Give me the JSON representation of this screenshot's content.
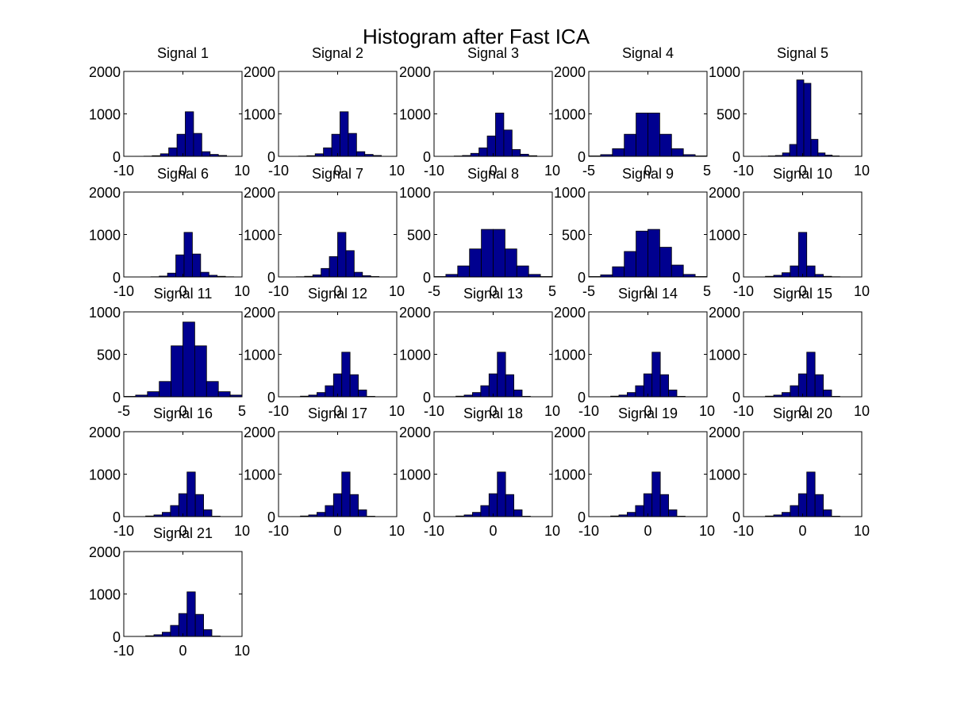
{
  "chart_data": {
    "type": "bar",
    "title": "Histogram after Fast ICA",
    "bar_color": "#00008F",
    "edge_color": "#000000",
    "grid": false,
    "panels": [
      {
        "title": "Signal 1",
        "xlim": [
          -10,
          10
        ],
        "ylim": [
          0,
          2000
        ],
        "xticks": [
          -10,
          0,
          10
        ],
        "yticks": [
          0,
          1000,
          2000
        ],
        "bin_centers": [
          -7.3,
          -5.9,
          -4.5,
          -3.1,
          -1.7,
          -0.3,
          1.1,
          2.5,
          3.9,
          5.3,
          6.7
        ],
        "counts": [
          2,
          5,
          15,
          60,
          200,
          520,
          1050,
          540,
          110,
          45,
          20
        ]
      },
      {
        "title": "Signal 2",
        "xlim": [
          -10,
          10
        ],
        "ylim": [
          0,
          2000
        ],
        "xticks": [
          -10,
          0,
          10
        ],
        "yticks": [
          0,
          1000,
          2000
        ],
        "bin_centers": [
          -7.3,
          -5.9,
          -4.5,
          -3.1,
          -1.7,
          -0.3,
          1.1,
          2.5,
          3.9,
          5.3,
          6.7
        ],
        "counts": [
          2,
          5,
          15,
          60,
          200,
          520,
          1050,
          540,
          110,
          45,
          20
        ]
      },
      {
        "title": "Signal 3",
        "xlim": [
          -10,
          10
        ],
        "ylim": [
          0,
          2000
        ],
        "xticks": [
          -10,
          0,
          10
        ],
        "yticks": [
          0,
          1000,
          2000
        ],
        "bin_centers": [
          -7.3,
          -5.9,
          -4.5,
          -3.1,
          -1.7,
          -0.3,
          1.1,
          2.5,
          3.9,
          5.3,
          6.7
        ],
        "counts": [
          2,
          8,
          20,
          70,
          200,
          480,
          1020,
          620,
          160,
          50,
          15
        ]
      },
      {
        "title": "Signal 4",
        "xlim": [
          -5,
          5
        ],
        "ylim": [
          0,
          2000
        ],
        "xticks": [
          -5,
          0,
          5
        ],
        "yticks": [
          0,
          1000,
          2000
        ],
        "bin_centers": [
          -4.5,
          -3.5,
          -2.5,
          -1.5,
          -0.5,
          0.5,
          1.5,
          2.5,
          3.5,
          4.5
        ],
        "counts": [
          10,
          40,
          180,
          520,
          1020,
          1020,
          520,
          180,
          40,
          10
        ]
      },
      {
        "title": "Signal 5",
        "xlim": [
          -10,
          10
        ],
        "ylim": [
          0,
          1000
        ],
        "xticks": [
          -10,
          0,
          10
        ],
        "yticks": [
          0,
          500,
          1000
        ],
        "bin_centers": [
          -6.4,
          -5.2,
          -4.0,
          -2.8,
          -1.6,
          -0.4,
          0.8,
          2.0,
          3.2,
          4.4,
          5.6
        ],
        "counts": [
          2,
          5,
          10,
          40,
          140,
          900,
          860,
          200,
          40,
          15,
          5
        ]
      },
      {
        "title": "Signal 6",
        "xlim": [
          -10,
          10
        ],
        "ylim": [
          0,
          2000
        ],
        "xticks": [
          -10,
          0,
          10
        ],
        "yticks": [
          0,
          1000,
          2000
        ],
        "bin_centers": [
          -4.7,
          -3.3,
          -1.9,
          -0.5,
          0.9,
          2.3,
          3.7,
          5.1,
          6.5,
          7.9
        ],
        "counts": [
          5,
          20,
          90,
          520,
          1050,
          540,
          110,
          40,
          15,
          5
        ]
      },
      {
        "title": "Signal 7",
        "xlim": [
          -10,
          10
        ],
        "ylim": [
          0,
          2000
        ],
        "xticks": [
          -10,
          0,
          10
        ],
        "yticks": [
          0,
          1000,
          2000
        ],
        "bin_centers": [
          -6.3,
          -4.9,
          -3.5,
          -2.1,
          -0.7,
          0.7,
          2.1,
          3.5,
          4.9,
          6.3
        ],
        "counts": [
          5,
          15,
          50,
          200,
          480,
          1050,
          620,
          110,
          30,
          10
        ]
      },
      {
        "title": "Signal 8",
        "xlim": [
          -5,
          5
        ],
        "ylim": [
          0,
          1000
        ],
        "xticks": [
          -5,
          0,
          5
        ],
        "yticks": [
          0,
          500,
          1000
        ],
        "bin_centers": [
          -4.5,
          -3.5,
          -2.5,
          -1.5,
          -0.5,
          0.5,
          1.5,
          2.5,
          3.5,
          4.5
        ],
        "counts": [
          5,
          30,
          130,
          330,
          560,
          560,
          330,
          130,
          30,
          5
        ]
      },
      {
        "title": "Signal 9",
        "xlim": [
          -5,
          5
        ],
        "ylim": [
          0,
          1000
        ],
        "xticks": [
          -5,
          0,
          5
        ],
        "yticks": [
          0,
          500,
          1000
        ],
        "bin_centers": [
          -4.5,
          -3.5,
          -2.5,
          -1.5,
          -0.5,
          0.5,
          1.5,
          2.5,
          3.5,
          4.5
        ],
        "counts": [
          5,
          25,
          120,
          300,
          540,
          560,
          350,
          140,
          30,
          5
        ]
      },
      {
        "title": "Signal 10",
        "xlim": [
          -10,
          10
        ],
        "ylim": [
          0,
          2000
        ],
        "xticks": [
          -10,
          0,
          10
        ],
        "yticks": [
          0,
          1000,
          2000
        ],
        "bin_centers": [
          -7.0,
          -5.6,
          -4.2,
          -2.8,
          -1.4,
          0.0,
          1.4,
          2.8,
          4.2,
          5.6
        ],
        "counts": [
          2,
          15,
          40,
          100,
          260,
          1050,
          260,
          60,
          15,
          5
        ]
      },
      {
        "title": "Signal 11",
        "xlim": [
          -5,
          5
        ],
        "ylim": [
          0,
          1000
        ],
        "xticks": [
          -5,
          0,
          5
        ],
        "yticks": [
          0,
          500,
          1000
        ],
        "bin_centers": [
          -4.5,
          -3.5,
          -2.5,
          -1.5,
          -0.5,
          0.5,
          1.5,
          2.5,
          3.5,
          4.5
        ],
        "counts": [
          5,
          20,
          60,
          180,
          600,
          880,
          600,
          180,
          60,
          20
        ]
      },
      {
        "title": "Signal 12",
        "xlim": [
          -10,
          10
        ],
        "ylim": [
          0,
          2000
        ],
        "xticks": [
          -10,
          0,
          10
        ],
        "yticks": [
          0,
          1000,
          2000
        ],
        "bin_centers": [
          -7.0,
          -5.6,
          -4.2,
          -2.8,
          -1.4,
          0.0,
          1.4,
          2.8,
          4.2,
          5.6
        ],
        "counts": [
          2,
          15,
          40,
          100,
          260,
          540,
          1050,
          520,
          160,
          10
        ]
      },
      {
        "title": "Signal 13",
        "xlim": [
          -10,
          10
        ],
        "ylim": [
          0,
          2000
        ],
        "xticks": [
          -10,
          0,
          10
        ],
        "yticks": [
          0,
          1000,
          2000
        ],
        "bin_centers": [
          -7.0,
          -5.6,
          -4.2,
          -2.8,
          -1.4,
          0.0,
          1.4,
          2.8,
          4.2,
          5.6
        ],
        "counts": [
          2,
          15,
          40,
          100,
          260,
          540,
          1050,
          520,
          160,
          10
        ]
      },
      {
        "title": "Signal 14",
        "xlim": [
          -10,
          10
        ],
        "ylim": [
          0,
          2000
        ],
        "xticks": [
          -10,
          0,
          10
        ],
        "yticks": [
          0,
          1000,
          2000
        ],
        "bin_centers": [
          -7.0,
          -5.6,
          -4.2,
          -2.8,
          -1.4,
          0.0,
          1.4,
          2.8,
          4.2,
          5.6
        ],
        "counts": [
          2,
          15,
          40,
          100,
          260,
          540,
          1050,
          520,
          160,
          10
        ]
      },
      {
        "title": "Signal 15",
        "xlim": [
          -10,
          10
        ],
        "ylim": [
          0,
          2000
        ],
        "xticks": [
          -10,
          0,
          10
        ],
        "yticks": [
          0,
          1000,
          2000
        ],
        "bin_centers": [
          -7.0,
          -5.6,
          -4.2,
          -2.8,
          -1.4,
          0.0,
          1.4,
          2.8,
          4.2,
          5.6
        ],
        "counts": [
          2,
          15,
          40,
          100,
          260,
          540,
          1050,
          520,
          160,
          10
        ]
      },
      {
        "title": "Signal 16",
        "xlim": [
          -10,
          10
        ],
        "ylim": [
          0,
          2000
        ],
        "xticks": [
          -10,
          0,
          10
        ],
        "yticks": [
          0,
          1000,
          2000
        ],
        "bin_centers": [
          -7.0,
          -5.6,
          -4.2,
          -2.8,
          -1.4,
          0.0,
          1.4,
          2.8,
          4.2,
          5.6
        ],
        "counts": [
          2,
          15,
          40,
          100,
          260,
          540,
          1050,
          520,
          160,
          10
        ]
      },
      {
        "title": "Signal 17",
        "xlim": [
          -10,
          10
        ],
        "ylim": [
          0,
          2000
        ],
        "xticks": [
          -10,
          0,
          10
        ],
        "yticks": [
          0,
          1000,
          2000
        ],
        "bin_centers": [
          -7.0,
          -5.6,
          -4.2,
          -2.8,
          -1.4,
          0.0,
          1.4,
          2.8,
          4.2,
          5.6
        ],
        "counts": [
          2,
          15,
          40,
          100,
          260,
          540,
          1050,
          520,
          160,
          10
        ]
      },
      {
        "title": "Signal 18",
        "xlim": [
          -10,
          10
        ],
        "ylim": [
          0,
          2000
        ],
        "xticks": [
          -10,
          0,
          10
        ],
        "yticks": [
          0,
          1000,
          2000
        ],
        "bin_centers": [
          -7.0,
          -5.6,
          -4.2,
          -2.8,
          -1.4,
          0.0,
          1.4,
          2.8,
          4.2,
          5.6
        ],
        "counts": [
          2,
          15,
          40,
          100,
          260,
          540,
          1050,
          520,
          160,
          10
        ]
      },
      {
        "title": "Signal 19",
        "xlim": [
          -10,
          10
        ],
        "ylim": [
          0,
          2000
        ],
        "xticks": [
          -10,
          0,
          10
        ],
        "yticks": [
          0,
          1000,
          2000
        ],
        "bin_centers": [
          -7.0,
          -5.6,
          -4.2,
          -2.8,
          -1.4,
          0.0,
          1.4,
          2.8,
          4.2,
          5.6
        ],
        "counts": [
          2,
          15,
          40,
          100,
          260,
          540,
          1050,
          520,
          160,
          10
        ]
      },
      {
        "title": "Signal 20",
        "xlim": [
          -10,
          10
        ],
        "ylim": [
          0,
          2000
        ],
        "xticks": [
          -10,
          0,
          10
        ],
        "yticks": [
          0,
          1000,
          2000
        ],
        "bin_centers": [
          -7.0,
          -5.6,
          -4.2,
          -2.8,
          -1.4,
          0.0,
          1.4,
          2.8,
          4.2,
          5.6
        ],
        "counts": [
          2,
          15,
          40,
          100,
          260,
          540,
          1050,
          520,
          160,
          10
        ]
      },
      {
        "title": "Signal 21",
        "xlim": [
          -10,
          10
        ],
        "ylim": [
          0,
          2000
        ],
        "xticks": [
          -10,
          0,
          10
        ],
        "yticks": [
          0,
          1000,
          2000
        ],
        "bin_centers": [
          -7.0,
          -5.6,
          -4.2,
          -2.8,
          -1.4,
          0.0,
          1.4,
          2.8,
          4.2,
          5.6
        ],
        "counts": [
          2,
          15,
          40,
          100,
          260,
          540,
          1050,
          520,
          160,
          10
        ]
      }
    ]
  }
}
